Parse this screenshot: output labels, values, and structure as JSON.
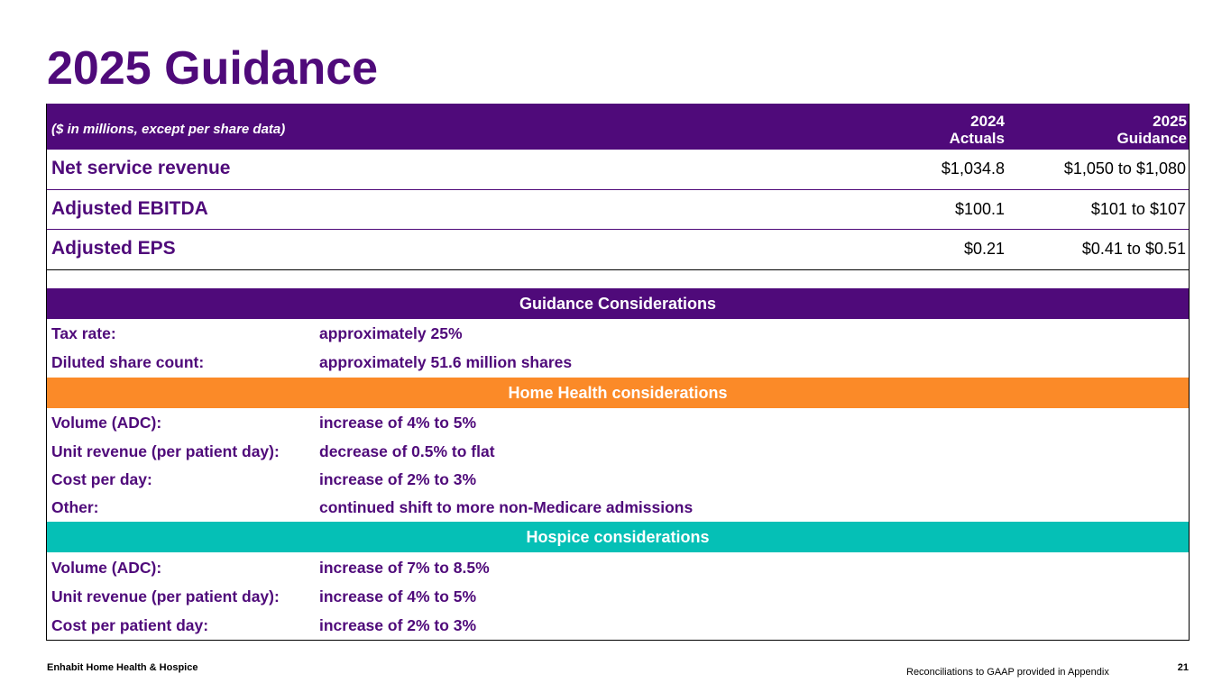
{
  "title": "2025 Guidance",
  "table_header": {
    "note": "($ in millions, except per share data)",
    "col1_line1": "2024",
    "col1_line2": "Actuals",
    "col2_line1": "2025",
    "col2_line2": "Guidance"
  },
  "metrics": [
    {
      "name": "Net service revenue",
      "actual": "$1,034.8",
      "guidance": "$1,050 to $1,080"
    },
    {
      "name": "Adjusted EBITDA",
      "actual": "$100.1",
      "guidance": "$101 to $107"
    },
    {
      "name": "Adjusted EPS",
      "actual": "$0.21",
      "guidance": "$0.41 to $0.51"
    }
  ],
  "sections": {
    "guidance": {
      "title": "Guidance Considerations",
      "rows": [
        {
          "label": "Tax rate:",
          "value": "approximately 25%"
        },
        {
          "label": "Diluted share count:",
          "value": "approximately 51.6 million shares"
        }
      ]
    },
    "home_health": {
      "title": "Home Health considerations",
      "rows": [
        {
          "label": "Volume (ADC):",
          "value": "increase of 4% to 5%"
        },
        {
          "label": "Unit revenue (per patient day):",
          "value": "decrease of 0.5% to flat"
        },
        {
          "label": "Cost per day:",
          "value": "increase of 2% to 3%"
        },
        {
          "label": "Other:",
          "value": "continued shift to more non-Medicare admissions"
        }
      ]
    },
    "hospice": {
      "title": "Hospice considerations",
      "rows": [
        {
          "label": "Volume (ADC):",
          "value": "increase of 7% to 8.5%"
        },
        {
          "label": "Unit revenue (per patient day):",
          "value": "increase of 4% to 5%"
        },
        {
          "label": "Cost per patient day:",
          "value": "increase of 2% to 3%"
        }
      ]
    }
  },
  "footer": {
    "company": "Enhabit Home Health & Hospice",
    "note": "Reconciliations to GAAP provided in Appendix",
    "page": "21"
  },
  "colors": {
    "purple": "#4f0a7a",
    "orange": "#fb8a28",
    "teal": "#05c0b6"
  }
}
